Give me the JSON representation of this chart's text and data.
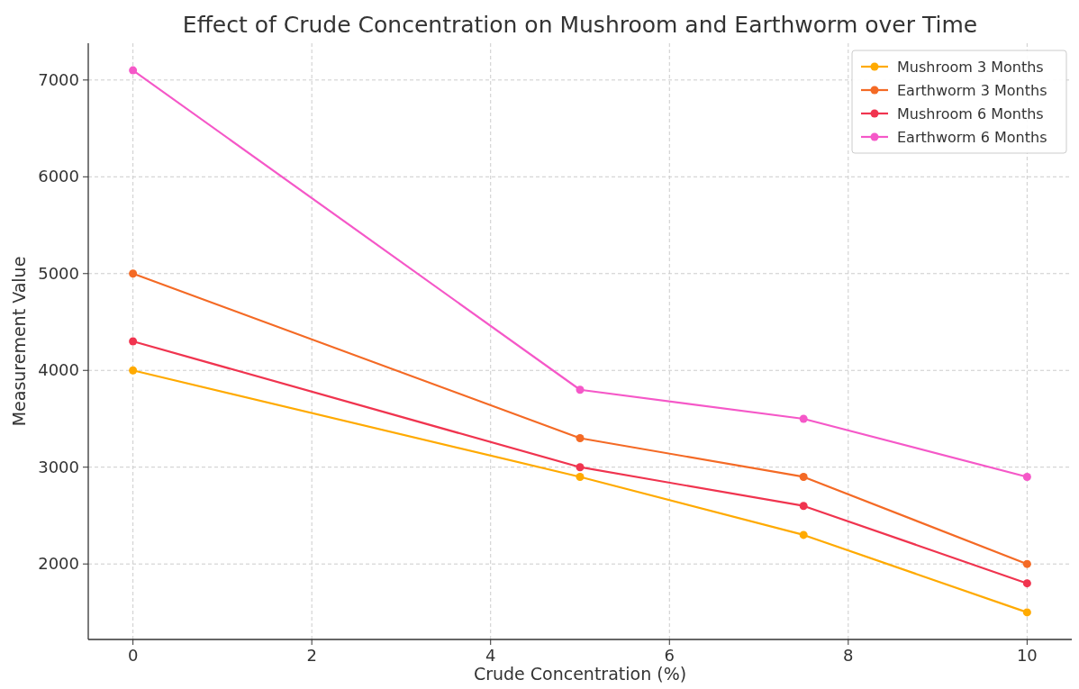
{
  "chart_data": {
    "type": "line",
    "title": "Effect of Crude Concentration on Mushroom and Earthworm over Time",
    "xlabel": "Crude Concentration (%)",
    "ylabel": "Measurement Value",
    "x": [
      0,
      5,
      7.5,
      10
    ],
    "series": [
      {
        "name": "Mushroom 3 Months",
        "color": "#ffaa00",
        "values": [
          4000,
          2900,
          2300,
          1500
        ]
      },
      {
        "name": "Earthworm 3 Months",
        "color": "#f46a25",
        "values": [
          5000,
          3300,
          2900,
          2000
        ]
      },
      {
        "name": "Mushroom 6 Months",
        "color": "#f0344f",
        "values": [
          4300,
          3000,
          2600,
          1800
        ]
      },
      {
        "name": "Earthworm 6 Months",
        "color": "#f558c8",
        "values": [
          7100,
          3800,
          3500,
          2900
        ]
      }
    ],
    "xlim": [
      -0.5,
      10.5
    ],
    "xticks": [
      0,
      2,
      4,
      6,
      8,
      10
    ],
    "ylim": [
      1220,
      7380
    ],
    "yticks": [
      2000,
      3000,
      4000,
      5000,
      6000,
      7000
    ],
    "grid": true,
    "legend": "top right",
    "marker": "circle",
    "line_style": "solid"
  }
}
